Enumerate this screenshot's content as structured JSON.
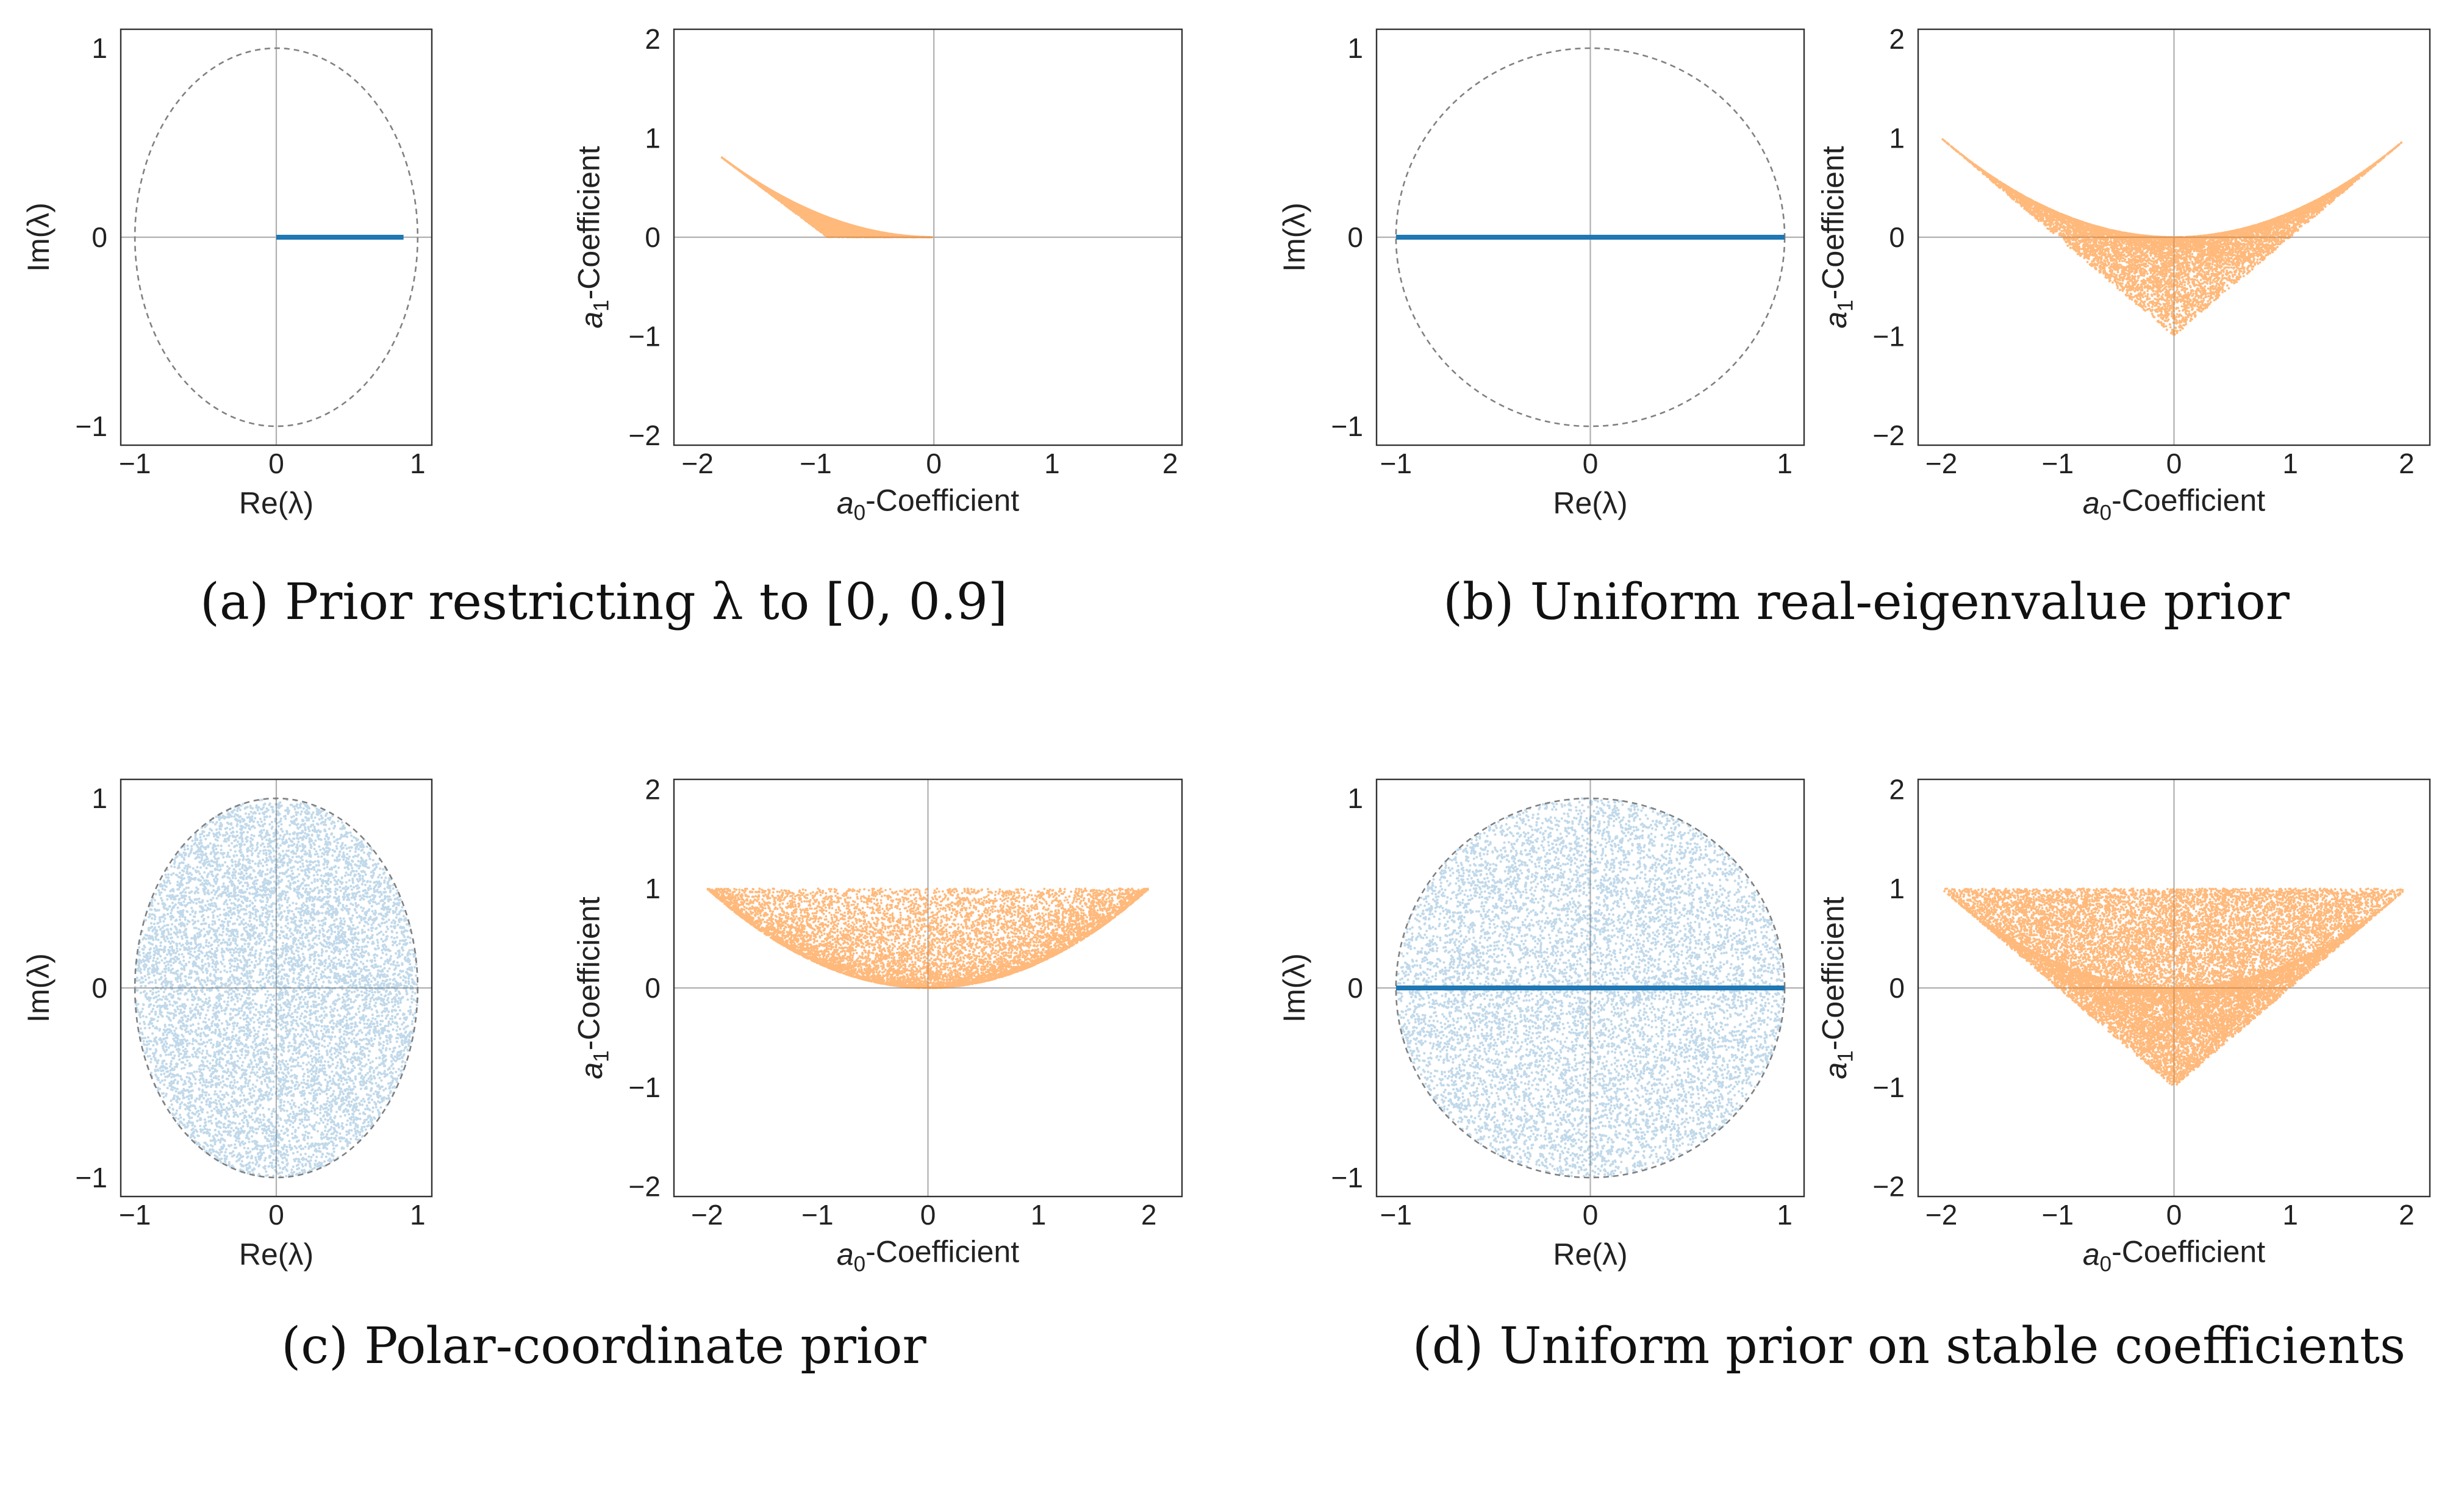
{
  "figure": {
    "captions": [
      "(a) Prior restricting λ to [0, 0.9]",
      "(b) Uniform real-eigenvalue prior",
      "(c) Polar-coordinate prior",
      "(d) Uniform prior on stable coefficients"
    ]
  },
  "colors": {
    "eigen": "#1f77b4",
    "coeff": "#ff7f0e",
    "unit_circle": "#808080",
    "grid": "#b0b0b0",
    "frame": "#333333"
  },
  "chart_data": [
    {
      "panel": "a",
      "id": "a-eigen",
      "kind": "eigen",
      "type": "scatter",
      "xlabel": "Re(λ)",
      "ylabel": "Im(λ)",
      "xlim": [
        -1.1,
        1.1
      ],
      "ylim": [
        -1.1,
        1.1
      ],
      "xticks": [
        -1,
        0,
        1
      ],
      "yticks": [
        -1,
        0,
        1
      ],
      "unit_circle": true,
      "grid": "zero-lines",
      "segments": [
        {
          "from": [
            0,
            0
          ],
          "to": [
            0.9,
            0
          ]
        }
      ],
      "distribution": "none"
    },
    {
      "panel": "a",
      "id": "a-coeff",
      "kind": "coeff",
      "type": "scatter",
      "xlabel": "a0-Coefficient",
      "ylabel": "a1-Coefficient",
      "xlim": [
        -2.2,
        2.1
      ],
      "ylim": [
        -2.1,
        2.1
      ],
      "xticks": [
        -2,
        -1,
        0,
        1,
        2
      ],
      "yticks": [
        -2,
        -1,
        0,
        1,
        2
      ],
      "grid": "zero-lines",
      "distribution": "real-pair",
      "eigen_range": [
        0,
        0.9
      ],
      "sample_points": [
        [
          -1.8,
          0.81
        ],
        [
          -1.5,
          0.56
        ],
        [
          -1.2,
          0.36
        ],
        [
          -1.0,
          0.25
        ],
        [
          -0.9,
          0
        ],
        [
          -0.5,
          0.06
        ],
        [
          0,
          0
        ]
      ]
    },
    {
      "panel": "b",
      "id": "b-eigen",
      "kind": "eigen",
      "type": "scatter",
      "xlabel": "Re(λ)",
      "ylabel": "Im(λ)",
      "xlim": [
        -1.1,
        1.1
      ],
      "ylim": [
        -1.1,
        1.1
      ],
      "xticks": [
        -1,
        0,
        1
      ],
      "yticks": [
        -1,
        0,
        1
      ],
      "unit_circle": true,
      "grid": "zero-lines",
      "segments": [
        {
          "from": [
            -1,
            0
          ],
          "to": [
            1,
            0
          ]
        }
      ],
      "distribution": "none"
    },
    {
      "panel": "b",
      "id": "b-coeff",
      "kind": "coeff",
      "type": "scatter",
      "xlabel": "a0-Coefficient",
      "ylabel": "a1-Coefficient",
      "xlim": [
        -2.2,
        2.2
      ],
      "ylim": [
        -2.1,
        2.1
      ],
      "xticks": [
        -2,
        -1,
        0,
        1,
        2
      ],
      "yticks": [
        -2,
        -1,
        0,
        1,
        2
      ],
      "grid": "zero-lines",
      "distribution": "real-pair",
      "eigen_range": [
        -1,
        1
      ],
      "sample_points": [
        [
          -2,
          1
        ],
        [
          -1,
          0.25
        ],
        [
          0,
          0
        ],
        [
          0,
          -1
        ],
        [
          1,
          0.25
        ],
        [
          2,
          1
        ]
      ]
    },
    {
      "panel": "c",
      "id": "c-eigen",
      "kind": "eigen",
      "type": "scatter",
      "xlabel": "Re(λ)",
      "ylabel": "Im(λ)",
      "xlim": [
        -1.1,
        1.1
      ],
      "ylim": [
        -1.1,
        1.1
      ],
      "xticks": [
        -1,
        0,
        1
      ],
      "yticks": [
        -1,
        0,
        1
      ],
      "unit_circle": true,
      "grid": "zero-lines",
      "segments": [],
      "distribution": "disk"
    },
    {
      "panel": "c",
      "id": "c-coeff",
      "kind": "coeff",
      "type": "scatter",
      "xlabel": "a0-Coefficient",
      "ylabel": "a1-Coefficient",
      "xlim": [
        -2.3,
        2.3
      ],
      "ylim": [
        -2.1,
        2.1
      ],
      "xticks": [
        -2,
        -1,
        0,
        1,
        2
      ],
      "yticks": [
        -2,
        -1,
        0,
        1,
        2
      ],
      "grid": "zero-lines",
      "distribution": "complex-pair",
      "sample_points": [
        [
          -2,
          1
        ],
        [
          -1,
          0.5
        ],
        [
          0,
          0
        ],
        [
          1,
          0.5
        ],
        [
          2,
          1
        ]
      ]
    },
    {
      "panel": "d",
      "id": "d-eigen",
      "kind": "eigen",
      "type": "scatter",
      "xlabel": "Re(λ)",
      "ylabel": "Im(λ)",
      "xlim": [
        -1.1,
        1.1
      ],
      "ylim": [
        -1.1,
        1.1
      ],
      "xticks": [
        -1,
        0,
        1
      ],
      "yticks": [
        -1,
        0,
        1
      ],
      "unit_circle": true,
      "grid": "zero-lines",
      "segments": [
        {
          "from": [
            -1,
            0
          ],
          "to": [
            1,
            0
          ]
        }
      ],
      "distribution": "disk"
    },
    {
      "panel": "d",
      "id": "d-coeff",
      "kind": "coeff",
      "type": "scatter",
      "xlabel": "a0-Coefficient",
      "ylabel": "a1-Coefficient",
      "xlim": [
        -2.2,
        2.2
      ],
      "ylim": [
        -2.1,
        2.1
      ],
      "xticks": [
        -2,
        -1,
        0,
        1,
        2
      ],
      "yticks": [
        -2,
        -1,
        0,
        1,
        2
      ],
      "grid": "zero-lines",
      "distribution": "stable-triangle",
      "sample_points": [
        [
          -2,
          1
        ],
        [
          2,
          1
        ],
        [
          0,
          -1
        ],
        [
          0,
          0
        ]
      ]
    }
  ]
}
